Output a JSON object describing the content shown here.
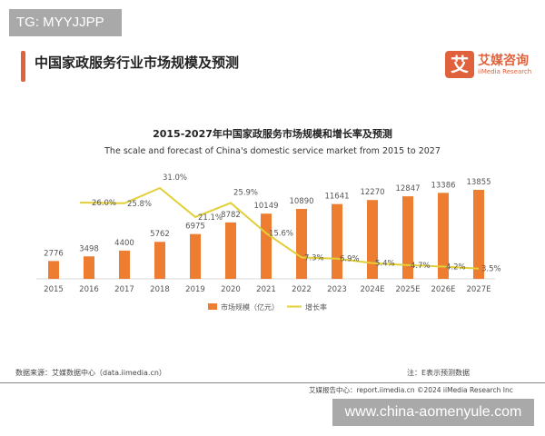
{
  "watermark_top": "TG: MYYJJPP",
  "page_title": "中国家政服务行业市场规模及预测",
  "logo": {
    "cn": "艾媒咨询",
    "en": "iiMedia Research",
    "mark": "艾"
  },
  "chart_data": {
    "type": "bar+line",
    "title": "2015-2027年中国家政服务市场规模和增长率及预测",
    "subtitle": "The scale and forecast of China's domestic service market from 2015 to 2027",
    "categories": [
      "2015",
      "2016",
      "2017",
      "2018",
      "2019",
      "2020",
      "2021",
      "2022",
      "2023",
      "2024E",
      "2025E",
      "2026E",
      "2027E"
    ],
    "series": [
      {
        "name": "市场规模（亿元）",
        "type": "bar",
        "color": "#ed7d31",
        "values": [
          2776,
          3498,
          4400,
          5762,
          6975,
          8782,
          10149,
          10890,
          11641,
          12270,
          12847,
          13386,
          13855
        ]
      },
      {
        "name": "增长率",
        "type": "line",
        "color": "#e3cf3a",
        "values": [
          null,
          26.0,
          25.8,
          31.0,
          21.1,
          25.9,
          15.6,
          7.3,
          6.9,
          5.4,
          4.7,
          4.2,
          3.5
        ],
        "unit": "%"
      }
    ],
    "legend": "bottom",
    "grid": false
  },
  "source": "数据来源：艾媒数据中心（data.iimedia.cn）",
  "note": "注：E表示预测数据",
  "footer": "艾媒报告中心：report.iimedia.cn    ©2024  iiMedia Research  Inc",
  "watermark_bottom": "www.china-aomenyule.com"
}
